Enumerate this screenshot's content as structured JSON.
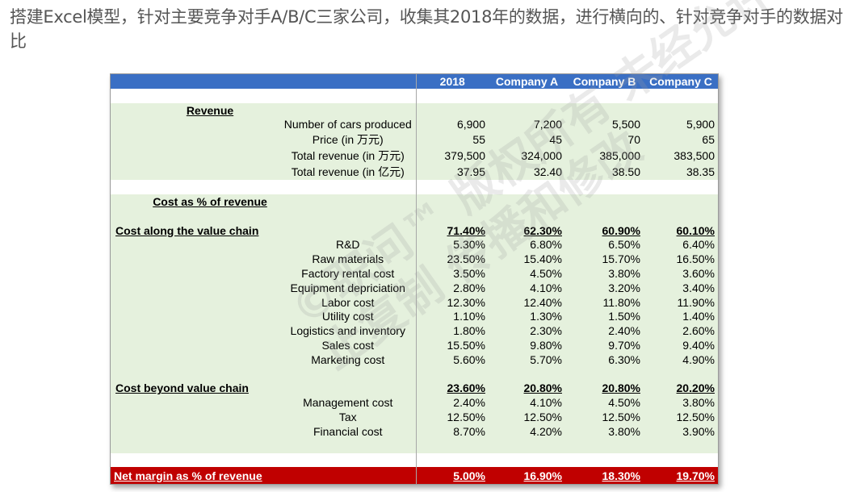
{
  "intro": "搭建Excel模型，针对主要竞争对手A/B/C三家公司，收集其2018年的数据，进行横向的、针对竞争对手的数据对比",
  "watermark": {
    "line1": "©职问™ 版权所有 未经允许禁",
    "line2": "止复制 传播和修改"
  },
  "colors": {
    "header": "#3a6fc4",
    "body": "#e5f1dd",
    "net": "#c00000"
  },
  "header": [
    "2018",
    "Company A",
    "Company B",
    "Company C"
  ],
  "revenue": {
    "title": "Revenue",
    "rows": [
      {
        "label": "Number of cars produced",
        "values": [
          "6,900",
          "7,200",
          "5,500",
          "5,900"
        ]
      },
      {
        "label": "Price (in 万元)",
        "values": [
          "55",
          "45",
          "70",
          "65"
        ]
      },
      {
        "label": "Total revenue (in 万元)",
        "values": [
          "379,500",
          "324,000",
          "385,000",
          "383,500"
        ]
      },
      {
        "label": "Total revenue (in 亿元)",
        "values": [
          "37.95",
          "32.40",
          "38.50",
          "38.35"
        ]
      }
    ]
  },
  "cost_title": "Cost as % of revenue",
  "value_chain": {
    "title": "Cost along the value chain",
    "totals": [
      "71.40%",
      "62.30%",
      "60.90%",
      "60.10%"
    ],
    "rows": [
      {
        "label": "R&D",
        "values": [
          "5.30%",
          "6.80%",
          "6.50%",
          "6.40%"
        ]
      },
      {
        "label": "Raw materials",
        "values": [
          "23.50%",
          "15.40%",
          "15.70%",
          "16.50%"
        ]
      },
      {
        "label": "Factory rental cost",
        "values": [
          "3.50%",
          "4.50%",
          "3.80%",
          "3.60%"
        ]
      },
      {
        "label": "Equipment depriciation",
        "values": [
          "2.80%",
          "4.10%",
          "3.20%",
          "3.40%"
        ]
      },
      {
        "label": "Labor cost",
        "values": [
          "12.30%",
          "12.40%",
          "11.80%",
          "11.90%"
        ]
      },
      {
        "label": "Utility cost",
        "values": [
          "1.10%",
          "1.30%",
          "1.50%",
          "1.40%"
        ]
      },
      {
        "label": "Logistics and inventory",
        "values": [
          "1.80%",
          "2.30%",
          "2.40%",
          "2.60%"
        ]
      },
      {
        "label": "Sales cost",
        "values": [
          "15.50%",
          "9.80%",
          "9.70%",
          "9.40%"
        ]
      },
      {
        "label": "Marketing cost",
        "values": [
          "5.60%",
          "5.70%",
          "6.30%",
          "4.90%"
        ]
      }
    ]
  },
  "beyond": {
    "title": "Cost beyond value chain",
    "totals": [
      "23.60%",
      "20.80%",
      "20.80%",
      "20.20%"
    ],
    "rows": [
      {
        "label": "Management cost",
        "values": [
          "2.40%",
          "4.10%",
          "4.50%",
          "3.80%"
        ]
      },
      {
        "label": "Tax",
        "values": [
          "12.50%",
          "12.50%",
          "12.50%",
          "12.50%"
        ]
      },
      {
        "label": "Financial cost",
        "values": [
          "8.70%",
          "4.20%",
          "3.80%",
          "3.90%"
        ]
      }
    ]
  },
  "net": {
    "label": "Net margin as % of revenue",
    "values": [
      "5.00%",
      "16.90%",
      "18.30%",
      "19.70%"
    ]
  }
}
